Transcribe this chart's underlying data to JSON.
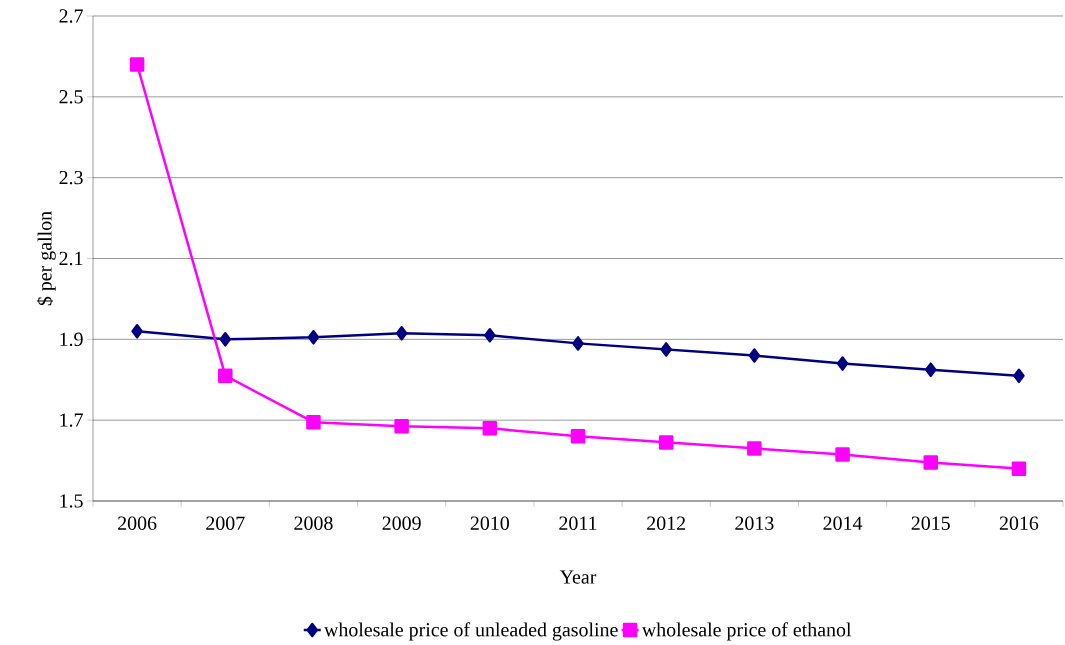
{
  "chart_data": {
    "type": "line",
    "xlabel": "Year",
    "ylabel": "$ per gallon",
    "categories": [
      "2006",
      "2007",
      "2008",
      "2009",
      "2010",
      "2011",
      "2012",
      "2013",
      "2014",
      "2015",
      "2016"
    ],
    "series": [
      {
        "name": "wholesale price of unleaded gasoline",
        "color": "#000080",
        "marker": "diamond",
        "values": [
          1.92,
          1.9,
          1.905,
          1.915,
          1.91,
          1.89,
          1.875,
          1.86,
          1.84,
          1.825,
          1.81
        ]
      },
      {
        "name": "wholesale price of ethanol",
        "color": "#ff00ff",
        "marker": "square",
        "values": [
          2.58,
          1.81,
          1.695,
          1.685,
          1.68,
          1.66,
          1.645,
          1.63,
          1.615,
          1.595,
          1.58
        ]
      }
    ],
    "ylim": [
      1.5,
      2.7
    ],
    "yticks": [
      1.5,
      1.7,
      1.9,
      2.1,
      2.3,
      2.5,
      2.7
    ],
    "grid": "y",
    "legend": "bottom",
    "line_style": "solid"
  }
}
